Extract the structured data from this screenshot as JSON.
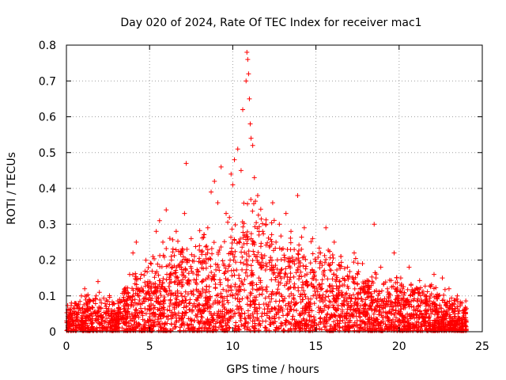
{
  "chart_data": {
    "type": "scatter",
    "title": "Day 020 of 2024, Rate Of TEC Index for receiver mac1",
    "xlabel": "GPS time / hours",
    "ylabel": "ROTI / TECUs",
    "xlim": [
      0,
      25
    ],
    "ylim": [
      0,
      0.8
    ],
    "xticks": [
      "0",
      "5",
      "10",
      "15",
      "20",
      "25"
    ],
    "yticks": [
      "0",
      "0.1",
      "0.2",
      "0.3",
      "0.4",
      "0.5",
      "0.6",
      "0.7",
      "0.8"
    ],
    "grid": true,
    "marker": "+",
    "color": "#ff0000",
    "series": [
      {
        "name": "ROTI",
        "x": [
          0.1,
          0.3,
          0.5,
          0.9,
          1.1,
          1.9,
          2.1,
          2.9,
          3.2,
          3.5,
          3.8,
          4.0,
          4.2,
          4.5,
          4.9,
          5.2,
          5.4,
          5.6,
          5.8,
          6.0,
          6.3,
          6.6,
          6.9,
          7.1,
          7.2,
          7.5,
          8.0,
          8.5,
          8.7,
          8.9,
          9.1,
          9.3,
          9.6,
          9.9,
          10.0,
          10.1,
          10.3,
          10.5,
          10.6,
          10.8,
          10.85,
          10.9,
          10.95,
          11.0,
          11.05,
          11.1,
          11.2,
          11.3,
          11.5,
          11.8,
          12.0,
          12.4,
          12.6,
          12.8,
          13.2,
          13.5,
          13.9,
          14.3,
          14.8,
          15.2,
          15.6,
          16.1,
          16.5,
          16.9,
          17.3,
          17.8,
          18.2,
          18.5,
          18.9,
          19.3,
          19.7,
          20.1,
          20.6,
          21.1,
          21.6,
          22.1,
          22.6,
          23.0,
          23.5,
          23.9
        ],
        "y": [
          0.06,
          0.08,
          0.05,
          0.1,
          0.12,
          0.14,
          0.08,
          0.04,
          0.09,
          0.12,
          0.16,
          0.22,
          0.25,
          0.16,
          0.14,
          0.21,
          0.28,
          0.31,
          0.25,
          0.34,
          0.21,
          0.28,
          0.18,
          0.33,
          0.47,
          0.26,
          0.24,
          0.29,
          0.39,
          0.42,
          0.36,
          0.46,
          0.33,
          0.44,
          0.41,
          0.48,
          0.51,
          0.45,
          0.62,
          0.7,
          0.78,
          0.76,
          0.72,
          0.65,
          0.58,
          0.54,
          0.52,
          0.43,
          0.38,
          0.28,
          0.3,
          0.36,
          0.25,
          0.3,
          0.33,
          0.28,
          0.38,
          0.29,
          0.26,
          0.22,
          0.29,
          0.25,
          0.21,
          0.18,
          0.22,
          0.19,
          0.14,
          0.3,
          0.18,
          0.12,
          0.22,
          0.15,
          0.18,
          0.12,
          0.1,
          0.16,
          0.15,
          0.12,
          0.1,
          0.06
        ],
        "envelope": {
          "x": [
            0,
            1,
            2,
            3,
            4,
            5,
            6,
            7,
            8,
            9,
            10,
            11,
            12,
            13,
            14,
            15,
            16,
            17,
            18,
            19,
            20,
            21,
            22,
            23,
            24
          ],
          "y": [
            0.05,
            0.07,
            0.08,
            0.06,
            0.12,
            0.15,
            0.18,
            0.2,
            0.2,
            0.2,
            0.25,
            0.27,
            0.24,
            0.22,
            0.2,
            0.18,
            0.17,
            0.15,
            0.13,
            0.12,
            0.11,
            0.1,
            0.09,
            0.08,
            0.06
          ]
        }
      }
    ]
  }
}
